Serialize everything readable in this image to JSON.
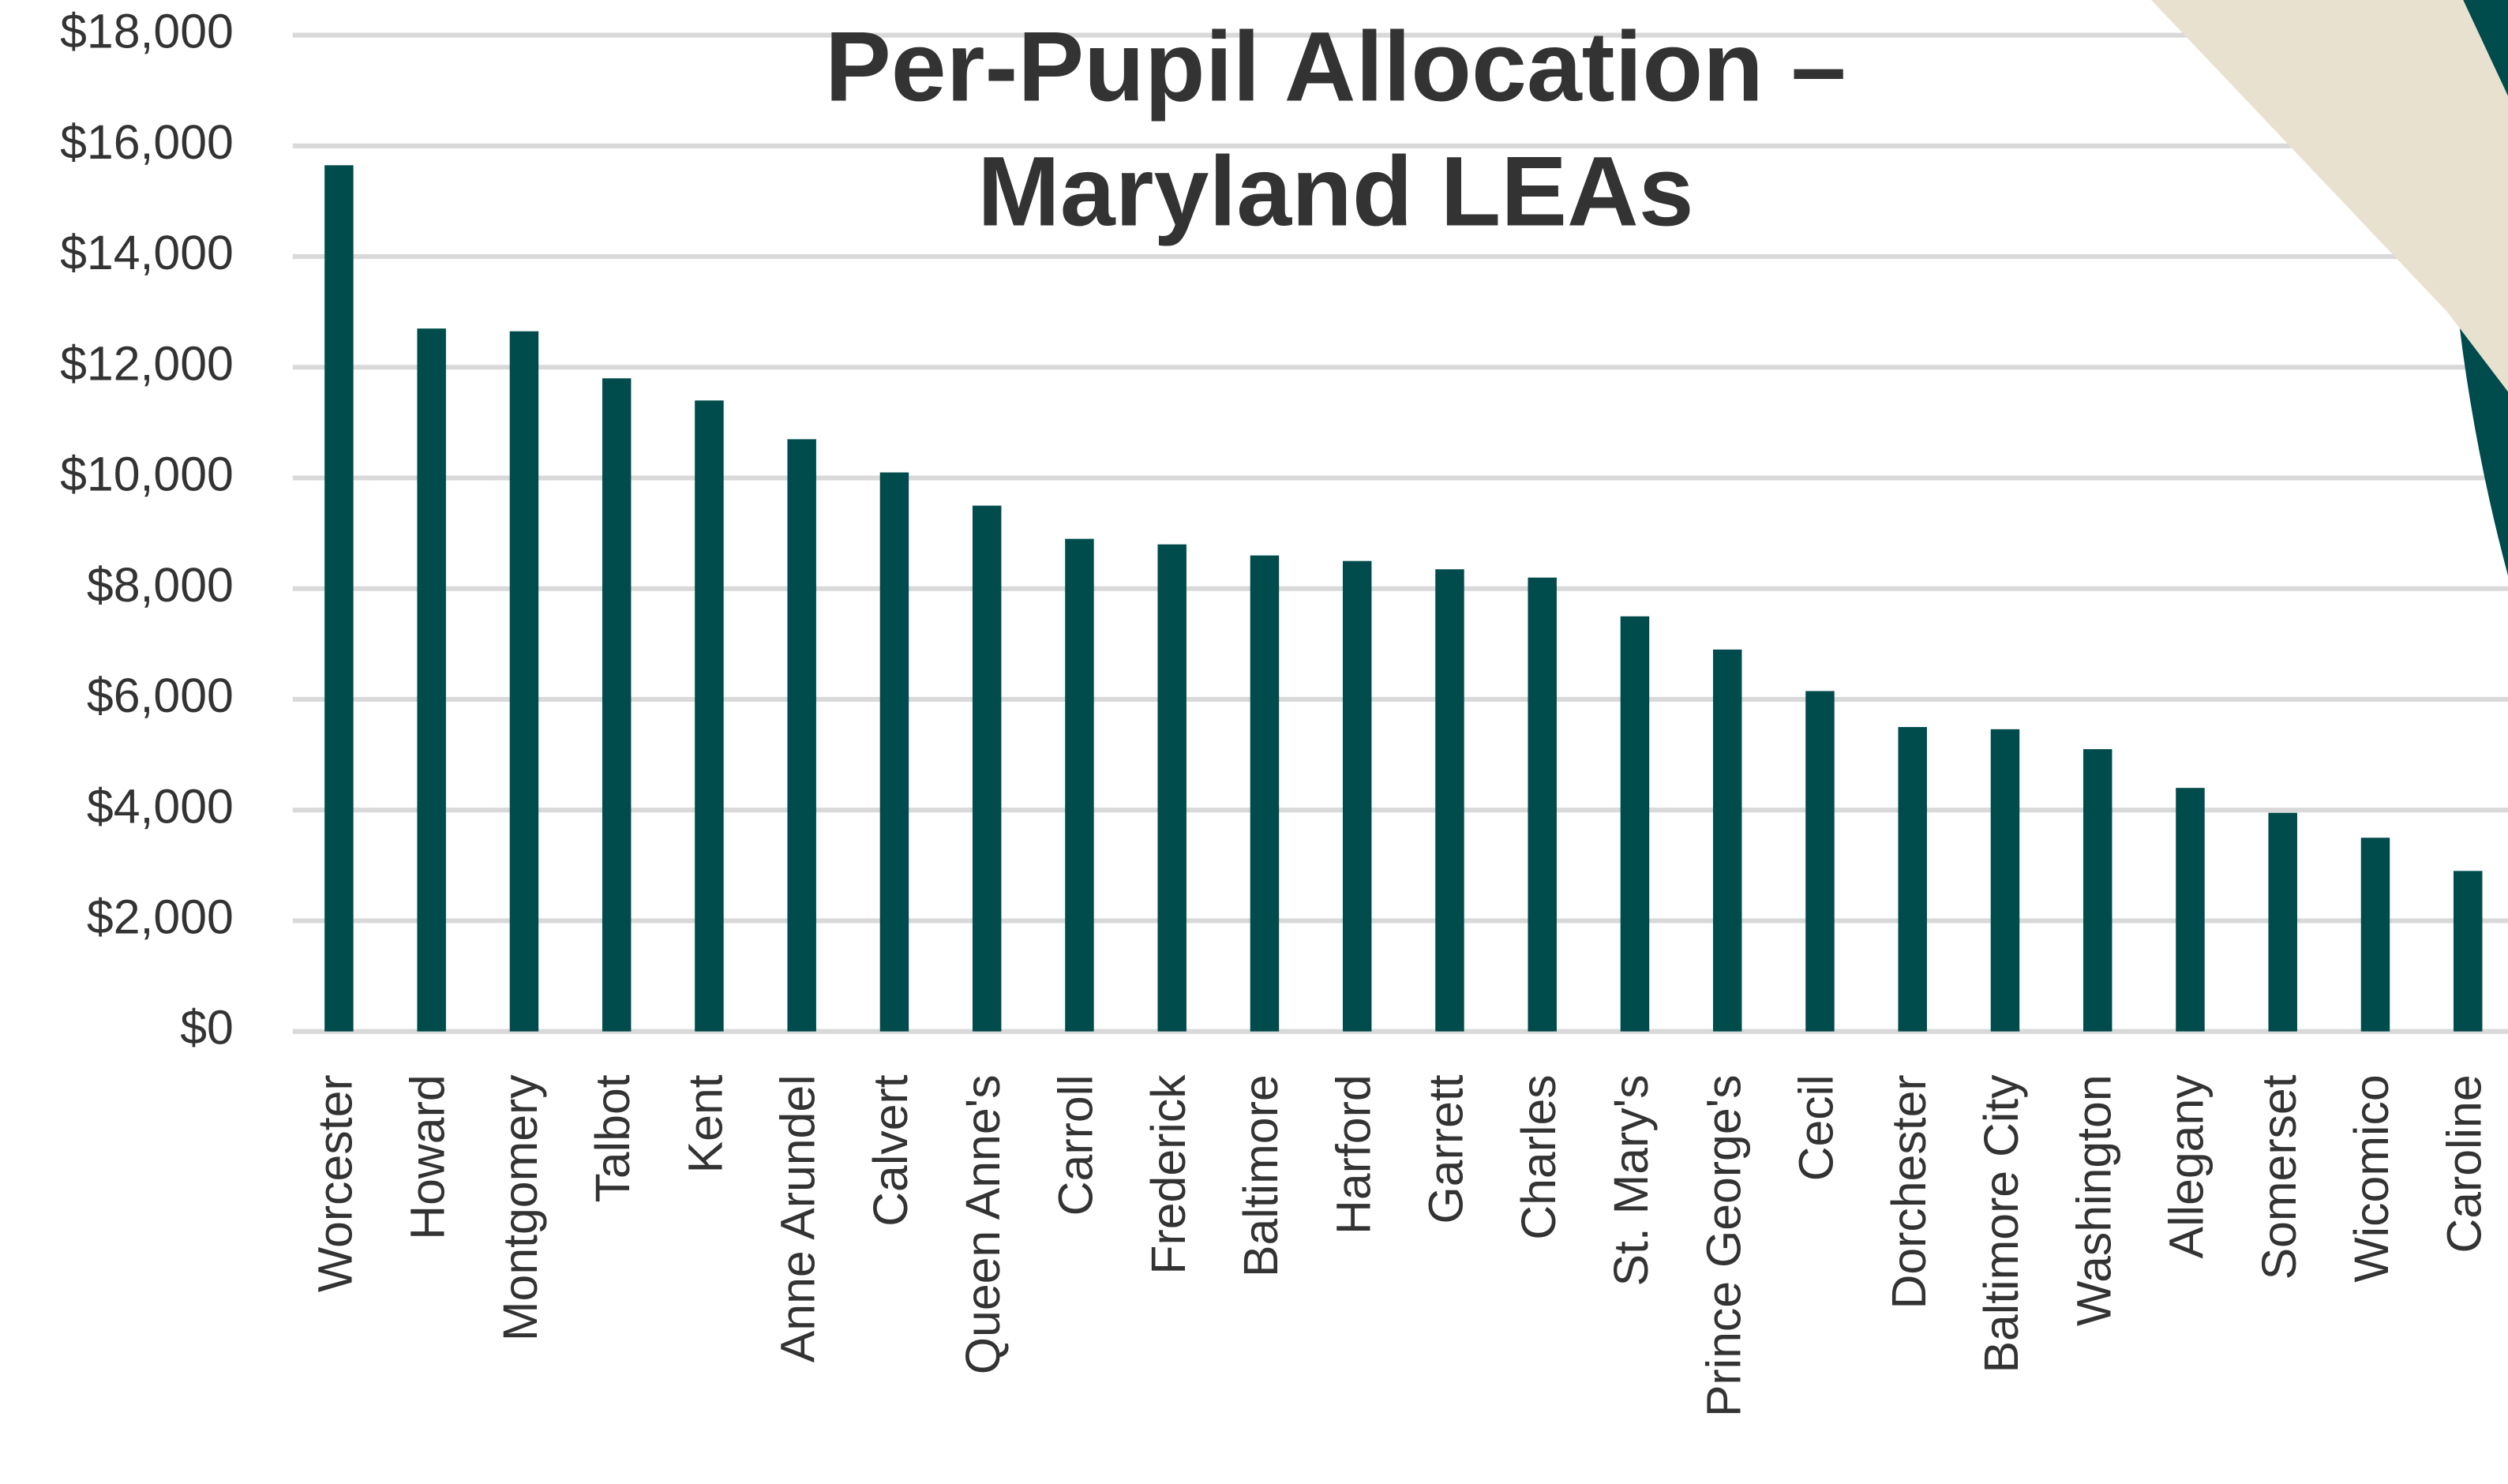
{
  "chart_data": {
    "type": "bar",
    "title": "Per-Pupil Allocation – Maryland LEAs",
    "categories": [
      "Worcester",
      "Howard",
      "Montgomery",
      "Talbot",
      "Kent",
      "Anne Arundel",
      "Calvert",
      "Queen Anne's",
      "Carroll",
      "Frederick",
      "Baltimore",
      "Harford",
      "Garrett",
      "Charles",
      "St. Mary's",
      "Prince George's",
      "Cecil",
      "Dorchester",
      "Baltimore City",
      "Washington",
      "Allegany",
      "Somerset",
      "Wicomico",
      "Caroline"
    ],
    "values": [
      15650,
      12700,
      12650,
      11800,
      11400,
      10700,
      10100,
      9500,
      8900,
      8800,
      8600,
      8500,
      8350,
      8200,
      7500,
      6900,
      6150,
      5500,
      5460,
      5100,
      4400,
      3950,
      3500,
      2900
    ],
    "color": "#004b4b",
    "ylim": [
      0,
      18000
    ],
    "yticks": [
      {
        "value": 0,
        "label": "$0"
      },
      {
        "value": 2000,
        "label": "$2,000"
      },
      {
        "value": 4000,
        "label": "$4,000"
      },
      {
        "value": 6000,
        "label": "$6,000"
      },
      {
        "value": 8000,
        "label": "$8,000"
      },
      {
        "value": 10000,
        "label": "$10,000"
      },
      {
        "value": 12000,
        "label": "$12,000"
      },
      {
        "value": 14000,
        "label": "$14,000"
      },
      {
        "value": 16000,
        "label": "$16,000"
      },
      {
        "value": 18000,
        "label": "$18,000"
      }
    ],
    "grid": true
  }
}
